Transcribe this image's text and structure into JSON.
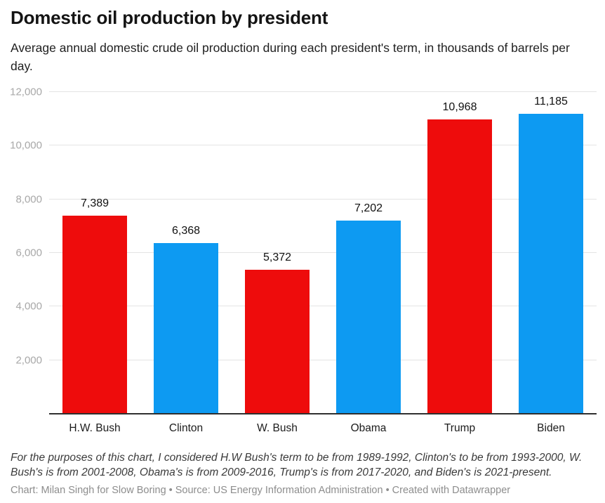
{
  "header": {
    "title": "Domestic oil production by president",
    "subtitle": "Average annual domestic crude oil production during each president's term, in thousands of barrels per day."
  },
  "chart_data": {
    "type": "bar",
    "title": "Domestic oil production by president",
    "categories": [
      "H.W. Bush",
      "Clinton",
      "W. Bush",
      "Obama",
      "Trump",
      "Biden"
    ],
    "values": [
      7389,
      6368,
      5372,
      7202,
      10968,
      11185
    ],
    "value_labels": [
      "7,389",
      "6,368",
      "5,372",
      "7,202",
      "10,968",
      "11,185"
    ],
    "parties": [
      "R",
      "D",
      "R",
      "D",
      "R",
      "D"
    ],
    "party_colors": {
      "R": "#ee0c0c",
      "D": "#0d9af2"
    },
    "xlabel": "",
    "ylabel": "",
    "ylim": [
      0,
      12000
    ],
    "yticks": [
      {
        "value": 2000,
        "label": "2,000"
      },
      {
        "value": 4000,
        "label": "4,000"
      },
      {
        "value": 6000,
        "label": "6,000"
      },
      {
        "value": 8000,
        "label": "8,000"
      },
      {
        "value": 10000,
        "label": "10,000"
      },
      {
        "value": 12000,
        "label": "12,000"
      }
    ],
    "grid": "horizontal",
    "legend": "none"
  },
  "footer": {
    "note": "For the purposes of this chart, I considered H.W Bush's term to be from 1989-1992, Clinton's to be from 1993-2000, W. Bush's is from 2001-2008, Obama's is from 2009-2016, Trump's is from 2017-2020, and Biden's is 2021-present.",
    "attribution": "Chart: Milan Singh for Slow Boring • Source: US Energy Information Administration • Created with Datawrapper"
  }
}
